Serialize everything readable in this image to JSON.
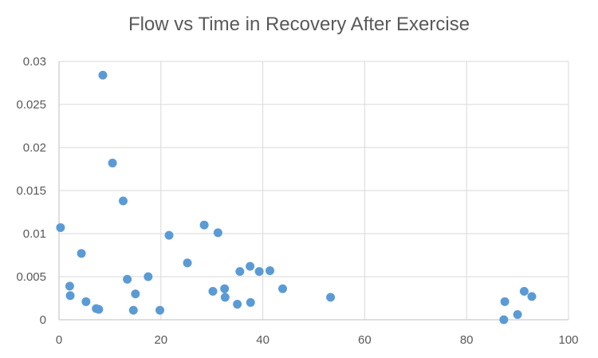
{
  "chart_data": {
    "type": "scatter",
    "title": "Flow vs Time in Recovery After Exercise",
    "xlabel": "",
    "ylabel": "",
    "xlim": [
      0,
      100
    ],
    "ylim": [
      0,
      0.03
    ],
    "x_ticks": [
      0,
      20,
      40,
      60,
      80,
      100
    ],
    "x_tick_labels": [
      "0",
      "20",
      "40",
      "60",
      "80",
      "100"
    ],
    "y_ticks": [
      0,
      0.005,
      0.01,
      0.015,
      0.02,
      0.025,
      0.03
    ],
    "y_tick_labels": [
      "0",
      "0.005",
      "0.01",
      "0.015",
      "0.02",
      "0.025",
      "0.03"
    ],
    "grid": true,
    "legend": "none",
    "marker_color": "#5B9BD5",
    "series": [
      {
        "points": [
          {
            "x": 0.3,
            "y": 0.0107
          },
          {
            "x": 2.1,
            "y": 0.0039
          },
          {
            "x": 2.2,
            "y": 0.0028
          },
          {
            "x": 4.4,
            "y": 0.0077
          },
          {
            "x": 5.3,
            "y": 0.0021
          },
          {
            "x": 7.3,
            "y": 0.0013
          },
          {
            "x": 7.8,
            "y": 0.0012
          },
          {
            "x": 8.6,
            "y": 0.0284
          },
          {
            "x": 10.5,
            "y": 0.0182
          },
          {
            "x": 12.6,
            "y": 0.0138
          },
          {
            "x": 13.4,
            "y": 0.0047
          },
          {
            "x": 14.6,
            "y": 0.0011
          },
          {
            "x": 15.0,
            "y": 0.003
          },
          {
            "x": 17.5,
            "y": 0.005
          },
          {
            "x": 19.8,
            "y": 0.0011
          },
          {
            "x": 21.6,
            "y": 0.0098
          },
          {
            "x": 25.2,
            "y": 0.0066
          },
          {
            "x": 28.5,
            "y": 0.011
          },
          {
            "x": 30.2,
            "y": 0.0033
          },
          {
            "x": 31.2,
            "y": 0.0101
          },
          {
            "x": 32.5,
            "y": 0.0036
          },
          {
            "x": 32.6,
            "y": 0.0026
          },
          {
            "x": 35.0,
            "y": 0.0018
          },
          {
            "x": 35.5,
            "y": 0.0056
          },
          {
            "x": 37.5,
            "y": 0.0062
          },
          {
            "x": 37.6,
            "y": 0.002
          },
          {
            "x": 39.3,
            "y": 0.0056
          },
          {
            "x": 41.4,
            "y": 0.0057
          },
          {
            "x": 43.9,
            "y": 0.0036
          },
          {
            "x": 53.3,
            "y": 0.0026
          },
          {
            "x": 87.3,
            "y": 0.0
          },
          {
            "x": 87.5,
            "y": 0.0021
          },
          {
            "x": 90.0,
            "y": 0.0006
          },
          {
            "x": 91.3,
            "y": 0.0033
          },
          {
            "x": 92.8,
            "y": 0.0027
          }
        ]
      }
    ]
  }
}
